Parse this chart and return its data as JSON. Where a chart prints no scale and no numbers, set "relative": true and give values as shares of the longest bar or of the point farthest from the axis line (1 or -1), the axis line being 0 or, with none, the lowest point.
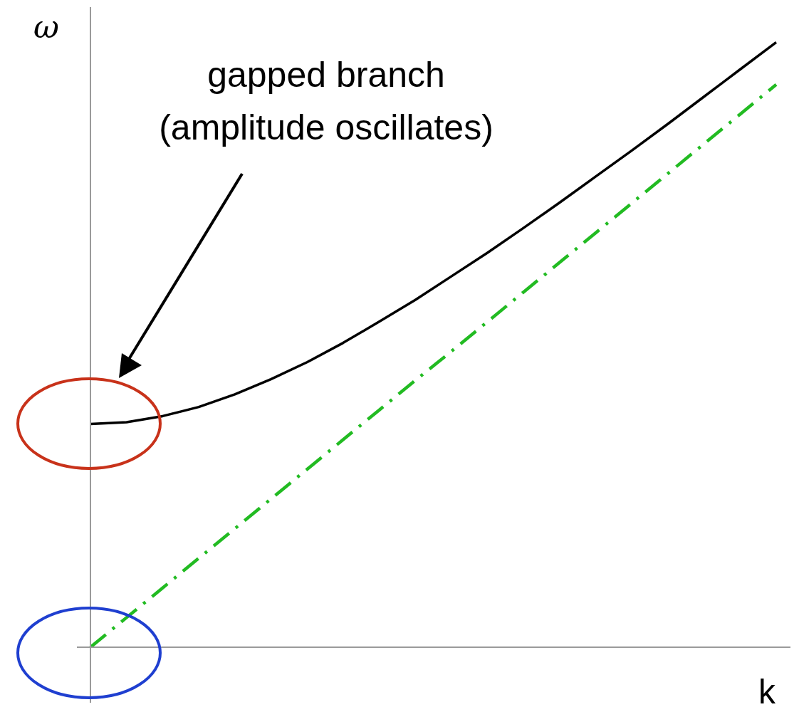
{
  "chart_data": {
    "type": "line",
    "relative": true,
    "xlabel": "k",
    "ylabel": "ω",
    "annotations": [
      "gapped branch\n(amplitude oscillates)"
    ],
    "categories": [
      null,
      null,
      null,
      null,
      null,
      null,
      null,
      null,
      null,
      null,
      null,
      null,
      null,
      null,
      null,
      null,
      null,
      null,
      null,
      null
    ],
    "line_style": "solid",
    "marker": "none",
    "grid": false,
    "legend": false,
    "series": [
      {
        "color": "#000000",
        "values": [
          0.369,
          0.372,
          0.382,
          0.397,
          0.418,
          0.443,
          0.471,
          0.503,
          0.538,
          0.574,
          0.613,
          0.652,
          0.693,
          0.735,
          0.778,
          0.821,
          0.865,
          0.91,
          0.955,
          1
        ]
      },
      {
        "color": "#22bb22",
        "line_style": "dashed",
        "values": [
          0,
          0.049,
          0.098,
          0.147,
          0.196,
          0.245,
          0.294,
          0.343,
          0.392,
          0.441,
          0.489,
          0.538,
          0.587,
          0.636,
          0.685,
          0.734,
          0.783,
          0.832,
          0.881,
          0.93
        ]
      }
    ]
  }
}
